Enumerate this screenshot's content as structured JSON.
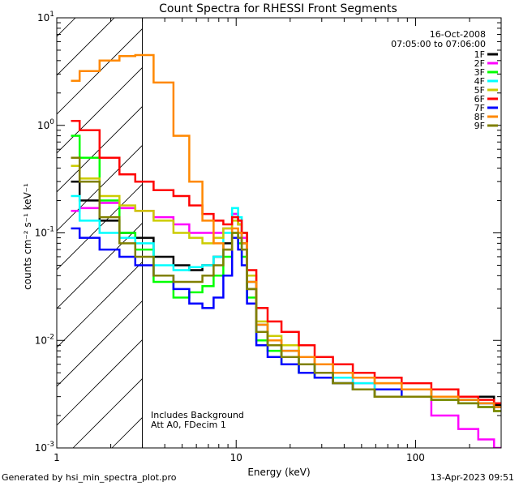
{
  "chart_data": {
    "type": "line",
    "title": "Count Spectra for RHESSI Front Segments",
    "xlabel": "Energy (keV)",
    "ylabel": "counts cm⁻² s⁻¹ keV⁻¹",
    "xscale": "log",
    "yscale": "log",
    "xlim": [
      1,
      300
    ],
    "ylim": [
      0.001,
      10
    ],
    "x_ticks": [
      {
        "value": 1,
        "label": "1"
      },
      {
        "value": 10,
        "label": "10"
      },
      {
        "value": 100,
        "label": "100"
      }
    ],
    "y_ticks": [
      {
        "value": 10,
        "base": "10",
        "exp": "1"
      },
      {
        "value": 1,
        "base": "10",
        "exp": "0"
      },
      {
        "value": 0.1,
        "base": "10",
        "exp": "-1"
      },
      {
        "value": 0.01,
        "base": "10",
        "exp": "-2"
      },
      {
        "value": 0.001,
        "base": "10",
        "exp": "-3"
      }
    ],
    "shaded_region_max_energy": 3,
    "date": "16-Oct-2008",
    "time_range": "07:05:00 to 07:06:00",
    "annotations": [
      "Includes Background",
      "Att A0, FDecim 1"
    ],
    "energies": [
      1.2,
      1.5,
      2,
      2.5,
      3,
      4,
      5,
      6,
      7,
      8,
      9,
      10,
      10.5,
      11,
      12,
      14,
      16,
      20,
      25,
      30,
      40,
      50,
      70,
      100,
      150,
      200,
      250,
      300
    ],
    "series": [
      {
        "name": "1F",
        "color": "#000000",
        "values": [
          0.3,
          0.2,
          0.13,
          0.1,
          0.09,
          0.06,
          0.05,
          0.045,
          0.05,
          0.06,
          0.08,
          0.15,
          0.12,
          0.08,
          0.03,
          0.012,
          0.009,
          0.007,
          0.006,
          0.005,
          0.004,
          0.0035,
          0.003,
          0.003,
          0.0035,
          0.003,
          0.003,
          0.0025
        ]
      },
      {
        "name": "2F",
        "color": "#ff00ff",
        "values": [
          0.16,
          0.17,
          0.19,
          0.17,
          0.16,
          0.14,
          0.12,
          0.1,
          0.1,
          0.1,
          0.11,
          0.15,
          0.13,
          0.09,
          0.035,
          0.014,
          0.01,
          0.008,
          0.007,
          0.006,
          0.005,
          0.004,
          0.003,
          0.003,
          0.002,
          0.0015,
          0.0012,
          0.001
        ]
      },
      {
        "name": "3F",
        "color": "#00ff00",
        "values": [
          0.8,
          0.5,
          0.2,
          0.1,
          0.07,
          0.035,
          0.025,
          0.028,
          0.032,
          0.04,
          0.06,
          0.1,
          0.08,
          0.06,
          0.025,
          0.01,
          0.008,
          0.006,
          0.005,
          0.0045,
          0.004,
          0.0035,
          0.003,
          0.003,
          0.0028,
          0.0026,
          0.0024,
          0.0022
        ]
      },
      {
        "name": "4F",
        "color": "#00ffff",
        "values": [
          0.22,
          0.13,
          0.1,
          0.09,
          0.08,
          0.05,
          0.045,
          0.048,
          0.05,
          0.06,
          0.1,
          0.17,
          0.14,
          0.1,
          0.035,
          0.014,
          0.01,
          0.008,
          0.006,
          0.005,
          0.0045,
          0.004,
          0.0035,
          0.003,
          0.003,
          0.0028,
          0.0026,
          0.0024
        ]
      },
      {
        "name": "5F",
        "color": "#cccc00",
        "values": [
          0.42,
          0.32,
          0.22,
          0.18,
          0.16,
          0.13,
          0.1,
          0.09,
          0.08,
          0.09,
          0.11,
          0.13,
          0.12,
          0.1,
          0.04,
          0.015,
          0.011,
          0.009,
          0.007,
          0.006,
          0.005,
          0.0045,
          0.004,
          0.0035,
          0.003,
          0.0028,
          0.0026,
          0.0024
        ]
      },
      {
        "name": "6F",
        "color": "#ff0000",
        "values": [
          1.1,
          0.9,
          0.5,
          0.35,
          0.3,
          0.25,
          0.22,
          0.18,
          0.15,
          0.13,
          0.12,
          0.14,
          0.13,
          0.1,
          0.045,
          0.02,
          0.015,
          0.012,
          0.009,
          0.007,
          0.006,
          0.005,
          0.0045,
          0.004,
          0.0035,
          0.003,
          0.0028,
          0.0026
        ]
      },
      {
        "name": "7F",
        "color": "#0000ff",
        "values": [
          0.11,
          0.09,
          0.07,
          0.06,
          0.05,
          0.04,
          0.03,
          0.022,
          0.02,
          0.025,
          0.04,
          0.09,
          0.07,
          0.05,
          0.022,
          0.009,
          0.007,
          0.006,
          0.005,
          0.0045,
          0.004,
          0.0035,
          0.0035,
          0.003,
          0.003,
          0.0028,
          0.0026,
          0.0024
        ]
      },
      {
        "name": "8F",
        "color": "#ff8800",
        "values": [
          2.6,
          3.2,
          4.0,
          4.4,
          4.5,
          2.5,
          0.8,
          0.3,
          0.13,
          0.08,
          0.07,
          0.11,
          0.1,
          0.08,
          0.035,
          0.014,
          0.01,
          0.008,
          0.007,
          0.006,
          0.005,
          0.0045,
          0.004,
          0.0035,
          0.003,
          0.0028,
          0.0026,
          0.0024
        ]
      },
      {
        "name": "9F",
        "color": "#808000",
        "values": [
          0.5,
          0.3,
          0.14,
          0.08,
          0.06,
          0.04,
          0.035,
          0.035,
          0.04,
          0.05,
          0.07,
          0.1,
          0.09,
          0.07,
          0.03,
          0.012,
          0.009,
          0.007,
          0.006,
          0.005,
          0.004,
          0.0035,
          0.003,
          0.003,
          0.0028,
          0.0026,
          0.0024,
          0.0022
        ]
      }
    ]
  },
  "footer": {
    "left": "Generated by hsi_min_spectra_plot.pro",
    "right": "13-Apr-2023 09:51"
  }
}
